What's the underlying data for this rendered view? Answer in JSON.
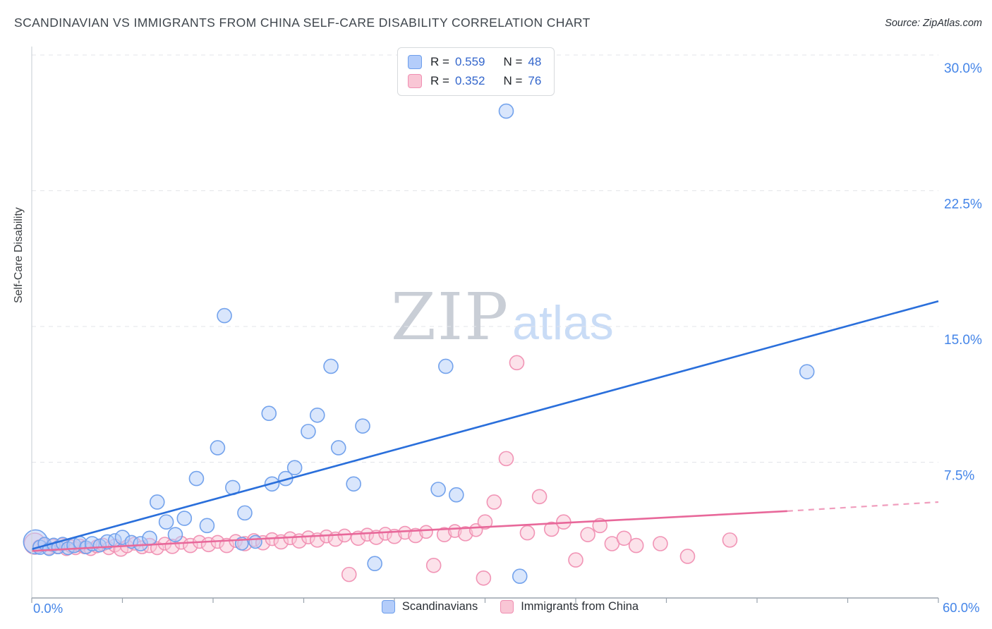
{
  "header": {
    "title": "SCANDINAVIAN VS IMMIGRANTS FROM CHINA SELF-CARE DISABILITY CORRELATION CHART",
    "source": "Source: ZipAtlas.com"
  },
  "watermark": {
    "part1": "ZIP",
    "part2": "atlas"
  },
  "stats_legend": {
    "r_label": "R =",
    "n_label": "N ="
  },
  "chart_data": {
    "type": "scatter",
    "title": "Scandinavian vs Immigrants from China Self-Care Disability Correlation Chart",
    "y_label": "Self-Care Disability",
    "x_label_min": "0.0%",
    "x_label_max": "60.0%",
    "x_range": [
      0,
      60
    ],
    "y_range": [
      0,
      30
    ],
    "x_ticks": [
      0,
      6,
      12,
      18,
      24,
      30,
      36,
      42,
      48,
      54,
      60
    ],
    "y_ticks": [
      {
        "v": 30,
        "label": "30.0%"
      },
      {
        "v": 22.5,
        "label": "22.5%"
      },
      {
        "v": 15,
        "label": "15.0%"
      },
      {
        "v": 7.5,
        "label": "7.5%"
      }
    ],
    "grid": "horizontal-dashed",
    "legend_position": "top-center",
    "colors": {
      "axis_label": "#4485e8",
      "grid": "#e3e5e9",
      "axis": "#9aa3ad",
      "spine": "#cfd4da",
      "value_text": "#3366cc"
    },
    "series": [
      {
        "id": "scandinavians",
        "name": "Scandinavians",
        "r": "0.559",
        "n": "48",
        "fill": "#b4cdfa",
        "stroke": "#6d9eeb",
        "line": "#2a6fdb",
        "trend": {
          "x0": 0,
          "y0": 2.7,
          "x1": 60,
          "y1": 16.4
        },
        "points": [
          [
            0.25,
            3.1,
            17
          ],
          [
            0.55,
            2.8,
            10
          ],
          [
            0.85,
            3.0,
            9
          ],
          [
            1.15,
            2.7,
            9
          ],
          [
            1.45,
            2.95,
            9
          ],
          [
            1.75,
            2.8,
            9
          ],
          [
            2.05,
            3.0,
            9
          ],
          [
            2.4,
            2.75,
            9
          ],
          [
            2.8,
            2.9,
            10
          ],
          [
            3.2,
            3.05,
            9
          ],
          [
            3.6,
            2.8,
            9
          ],
          [
            4.0,
            3.0,
            10
          ],
          [
            4.5,
            2.9,
            9
          ],
          [
            5.0,
            3.1,
            10
          ],
          [
            5.5,
            3.2,
            9
          ],
          [
            6.0,
            3.35,
            10
          ],
          [
            6.6,
            3.1,
            9
          ],
          [
            7.2,
            3.0,
            10
          ],
          [
            7.8,
            3.3,
            10
          ],
          [
            8.3,
            5.3,
            10
          ],
          [
            8.9,
            4.2,
            10
          ],
          [
            9.5,
            3.5,
            10
          ],
          [
            10.1,
            4.4,
            10
          ],
          [
            10.9,
            6.6,
            10
          ],
          [
            11.6,
            4.0,
            10
          ],
          [
            12.3,
            8.3,
            10
          ],
          [
            12.75,
            15.6,
            10
          ],
          [
            13.3,
            6.1,
            10
          ],
          [
            13.9,
            3.0,
            9
          ],
          [
            14.1,
            4.7,
            10
          ],
          [
            14.8,
            3.1,
            9
          ],
          [
            15.7,
            10.2,
            10
          ],
          [
            15.9,
            6.3,
            10
          ],
          [
            16.8,
            6.6,
            10
          ],
          [
            17.4,
            7.2,
            10
          ],
          [
            18.3,
            9.2,
            10
          ],
          [
            18.9,
            10.1,
            10
          ],
          [
            19.8,
            12.8,
            10
          ],
          [
            20.3,
            8.3,
            10
          ],
          [
            21.3,
            6.3,
            10
          ],
          [
            21.9,
            9.5,
            10
          ],
          [
            22.7,
            1.9,
            10
          ],
          [
            26.9,
            6.0,
            10
          ],
          [
            27.4,
            12.8,
            10
          ],
          [
            28.1,
            5.7,
            10
          ],
          [
            31.4,
            26.9,
            10
          ],
          [
            32.3,
            1.2,
            10
          ],
          [
            51.3,
            12.5,
            10
          ]
        ]
      },
      {
        "id": "immigrants-from-china",
        "name": "Immigrants from China",
        "r": "0.352",
        "n": "76",
        "fill": "#f9c6d5",
        "stroke": "#f08fb2",
        "line": "#e8689a",
        "trend": {
          "x0": 0,
          "y0": 2.6,
          "x1": 50,
          "y1": 4.8,
          "dash_x1": 60,
          "dash_y1": 5.3
        },
        "points": [
          [
            0.2,
            3.0,
            15
          ],
          [
            0.5,
            2.85,
            9
          ],
          [
            0.8,
            2.95,
            9
          ],
          [
            1.1,
            2.75,
            9
          ],
          [
            1.4,
            2.9,
            9
          ],
          [
            1.7,
            2.8,
            9
          ],
          [
            2.0,
            2.95,
            9
          ],
          [
            2.3,
            2.7,
            9
          ],
          [
            2.6,
            2.85,
            9
          ],
          [
            2.9,
            2.75,
            9
          ],
          [
            3.2,
            2.9,
            9
          ],
          [
            3.5,
            2.8,
            9
          ],
          [
            3.9,
            2.7,
            9
          ],
          [
            4.3,
            2.85,
            9
          ],
          [
            4.7,
            2.95,
            9
          ],
          [
            5.1,
            2.75,
            9
          ],
          [
            5.5,
            2.9,
            9
          ],
          [
            5.9,
            2.7,
            10
          ],
          [
            6.3,
            2.85,
            9
          ],
          [
            6.8,
            3.0,
            9
          ],
          [
            7.3,
            2.8,
            9
          ],
          [
            7.8,
            2.9,
            10
          ],
          [
            8.3,
            2.75,
            9
          ],
          [
            8.8,
            3.0,
            9
          ],
          [
            9.3,
            2.85,
            10
          ],
          [
            9.9,
            3.05,
            9
          ],
          [
            10.5,
            2.9,
            10
          ],
          [
            11.1,
            3.1,
            9
          ],
          [
            11.7,
            2.95,
            10
          ],
          [
            12.3,
            3.1,
            9
          ],
          [
            12.9,
            2.9,
            10
          ],
          [
            13.5,
            3.15,
            9
          ],
          [
            14.1,
            3.0,
            10
          ],
          [
            14.7,
            3.2,
            9
          ],
          [
            15.3,
            3.05,
            10
          ],
          [
            15.9,
            3.25,
            9
          ],
          [
            16.5,
            3.1,
            10
          ],
          [
            17.1,
            3.3,
            9
          ],
          [
            17.7,
            3.15,
            10
          ],
          [
            18.3,
            3.35,
            9
          ],
          [
            18.9,
            3.2,
            10
          ],
          [
            19.5,
            3.4,
            9
          ],
          [
            20.1,
            3.25,
            10
          ],
          [
            20.7,
            3.45,
            9
          ],
          [
            21.0,
            1.3,
            10
          ],
          [
            21.6,
            3.3,
            10
          ],
          [
            22.2,
            3.5,
            9
          ],
          [
            22.8,
            3.35,
            10
          ],
          [
            23.4,
            3.55,
            9
          ],
          [
            24.0,
            3.4,
            10
          ],
          [
            24.7,
            3.6,
            9
          ],
          [
            25.4,
            3.45,
            10
          ],
          [
            26.1,
            3.65,
            9
          ],
          [
            26.6,
            1.8,
            10
          ],
          [
            27.3,
            3.5,
            10
          ],
          [
            28.0,
            3.7,
            9
          ],
          [
            28.7,
            3.55,
            10
          ],
          [
            29.4,
            3.75,
            9
          ],
          [
            29.9,
            1.1,
            10
          ],
          [
            30.0,
            4.2,
            10
          ],
          [
            30.6,
            5.3,
            10
          ],
          [
            31.4,
            7.7,
            10
          ],
          [
            32.1,
            13.0,
            10
          ],
          [
            32.8,
            3.6,
            10
          ],
          [
            33.6,
            5.6,
            10
          ],
          [
            34.4,
            3.8,
            10
          ],
          [
            35.2,
            4.2,
            10
          ],
          [
            36.0,
            2.1,
            10
          ],
          [
            36.8,
            3.5,
            10
          ],
          [
            37.6,
            4.0,
            10
          ],
          [
            38.4,
            3.0,
            10
          ],
          [
            39.2,
            3.3,
            10
          ],
          [
            40.0,
            2.9,
            10
          ],
          [
            41.6,
            3.0,
            10
          ],
          [
            43.4,
            2.3,
            10
          ],
          [
            46.2,
            3.2,
            10
          ]
        ]
      }
    ]
  }
}
